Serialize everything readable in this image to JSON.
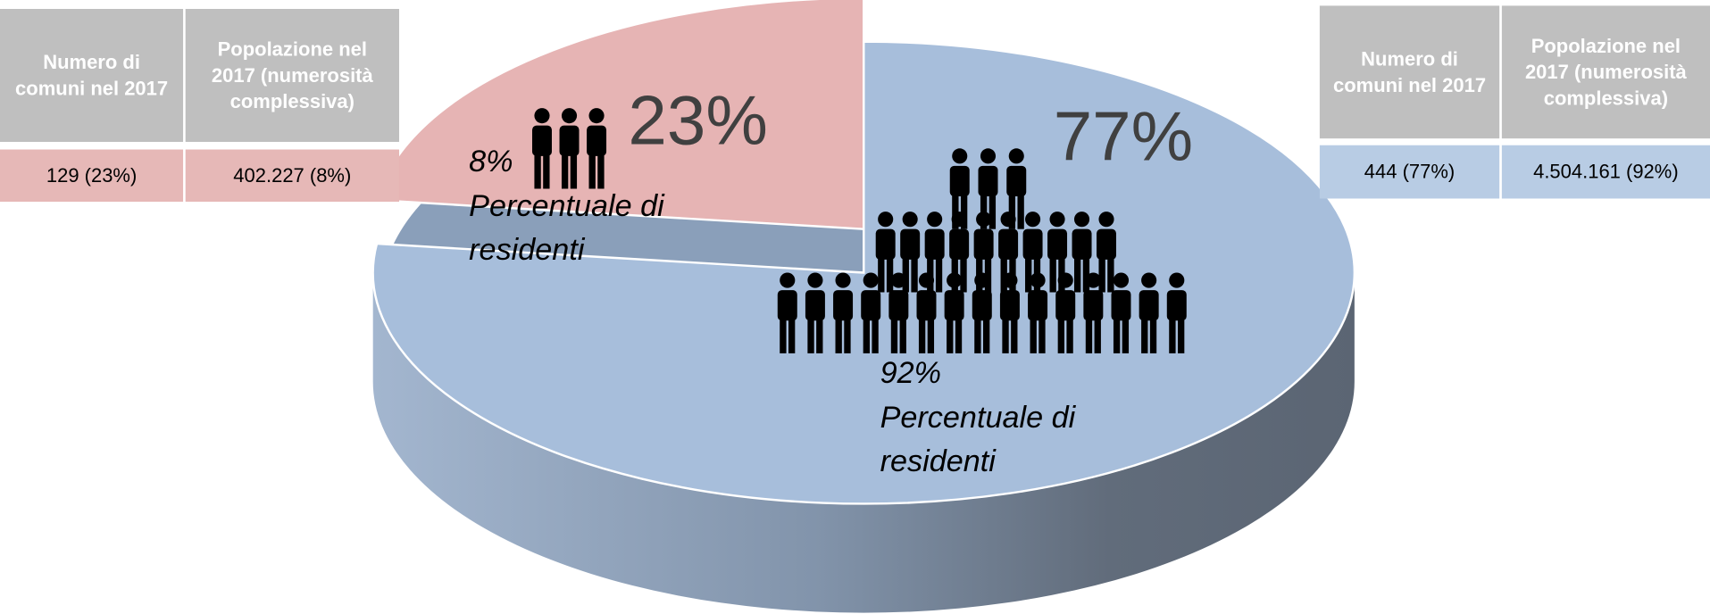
{
  "chart_data": {
    "type": "pie",
    "values": [
      23,
      77
    ],
    "value_labels": [
      "23%",
      "77%"
    ],
    "colors": [
      "#e6b4b4",
      "#a7bedb"
    ],
    "annotations": [
      {
        "value": "8%",
        "label": "Percentuale di residenti"
      },
      {
        "value": "92%",
        "label": "Percentuale di residenti"
      }
    ]
  },
  "tables": [
    {
      "header": [
        "Numero di comuni nel 2017",
        "Popolazione nel 2017 (numerosità complessiva)"
      ],
      "rows": [
        [
          "129 (23%)",
          "402.227 (8%)"
        ]
      ]
    },
    {
      "header": [
        "Numero di comuni nel 2017",
        "Popolazione nel 2017 (numerosità complessiva)"
      ],
      "rows": [
        [
          "444 (77%)",
          "4.504.161 (92%)"
        ]
      ]
    }
  ]
}
